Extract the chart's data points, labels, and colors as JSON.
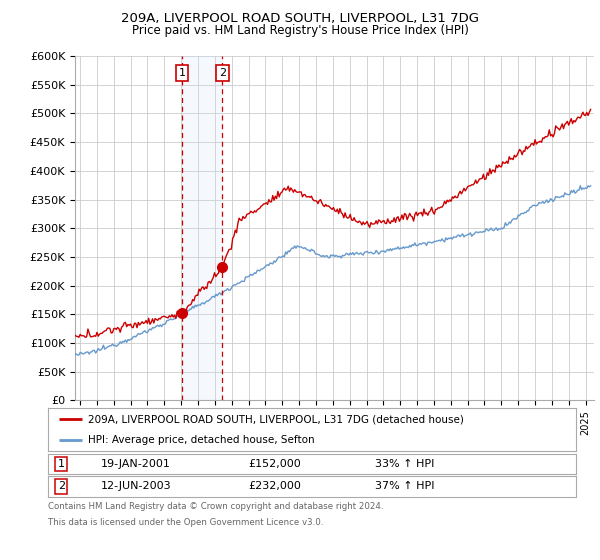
{
  "title": "209A, LIVERPOOL ROAD SOUTH, LIVERPOOL, L31 7DG",
  "subtitle": "Price paid vs. HM Land Registry's House Price Index (HPI)",
  "ylim": [
    0,
    600000
  ],
  "xlim_start": 1994.7,
  "xlim_end": 2025.5,
  "transaction1": {
    "date_num": 2001.05,
    "price": 152000,
    "label": "1"
  },
  "transaction2": {
    "date_num": 2003.45,
    "price": 232000,
    "label": "2"
  },
  "legend_line1": "209A, LIVERPOOL ROAD SOUTH, LIVERPOOL, L31 7DG (detached house)",
  "legend_line2": "HPI: Average price, detached house, Sefton",
  "footer1": "Contains HM Land Registry data © Crown copyright and database right 2024.",
  "footer2": "This data is licensed under the Open Government Licence v3.0.",
  "red_color": "#cc0000",
  "blue_color": "#6699cc",
  "bg_color": "#ffffff",
  "grid_color": "#cccccc",
  "shade_color": "#ddeeff"
}
